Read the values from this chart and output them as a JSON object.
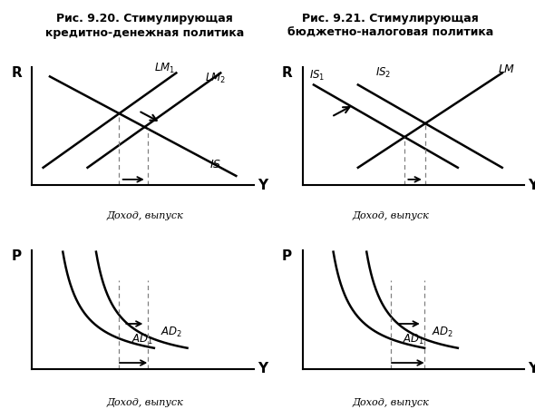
{
  "fig_width": 5.9,
  "fig_height": 4.62,
  "dpi": 100,
  "title_left": "Рис. 9.20. Стимулирующая\nкредитно-денежная политика",
  "title_right": "Рис. 9.21. Стимулирующая\nбюджетно-налоговая политика",
  "title_fontsize": 9.0,
  "label_income": "Доход, выпуск",
  "bg_color": "#ffffff"
}
